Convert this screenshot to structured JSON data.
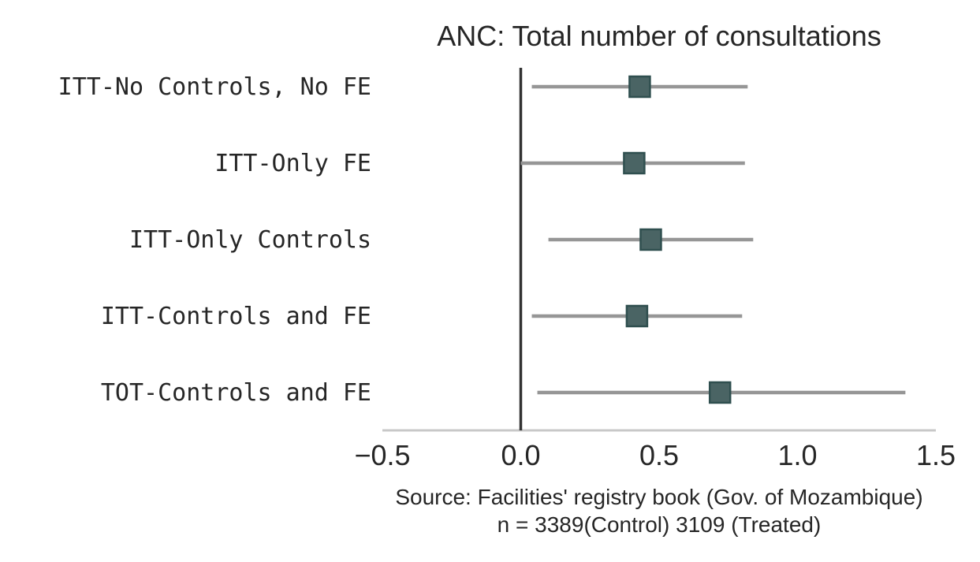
{
  "chart_data": {
    "type": "scatter",
    "title": "ANC: Total number of consultations",
    "categories": [
      "ITT-No Controls, No FE",
      "ITT-Only FE",
      "ITT-Only Controls",
      "ITT-Controls and FE",
      "TOT-Controls and FE"
    ],
    "estimates": [
      0.43,
      0.41,
      0.47,
      0.42,
      0.72
    ],
    "ci_low": [
      0.04,
      0.0,
      0.1,
      0.04,
      0.06
    ],
    "ci_high": [
      0.82,
      0.81,
      0.84,
      0.8,
      1.39
    ],
    "reference_line_x": 0.0,
    "xlim": [
      -0.5,
      1.5
    ],
    "xticks": [
      "−0.5",
      "0.0",
      "0.5",
      "1.0",
      "1.5"
    ],
    "xtick_values": [
      -0.5,
      0.0,
      0.5,
      1.0,
      1.5
    ],
    "xlabel_lines": [
      "Source: Facilities' registry book (Gov. of Mozambique)",
      "n = 3389(Control) 3109 (Treated)"
    ],
    "grid": false,
    "colors": {
      "marker_fill": "#4a6464",
      "marker_edge": "#2f4f4f",
      "ci_line": "#969696",
      "reference_line": "#333333",
      "axis": "#c8c8c8"
    }
  }
}
